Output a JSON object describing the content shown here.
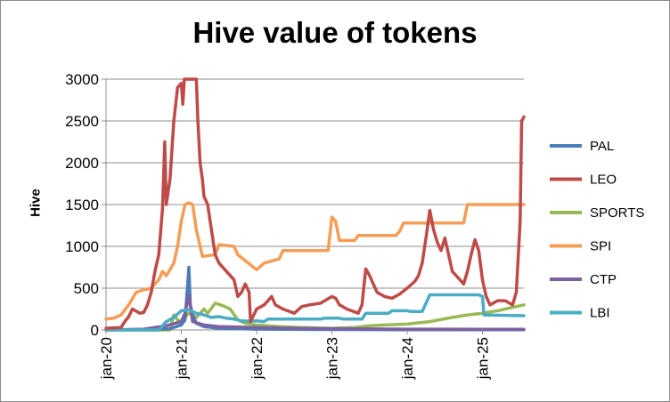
{
  "chart_data": {
    "type": "line",
    "title": "Hive value of tokens",
    "xlabel": "",
    "ylabel": "Hive",
    "x_tick_labels": [
      "jan-20",
      "jan-21",
      "jan-22",
      "jan-23",
      "jan-24",
      "jan-25"
    ],
    "x_tick_values": [
      2020.0,
      2021.0,
      2022.0,
      2023.0,
      2024.0,
      2025.0
    ],
    "xlim": [
      2020.0,
      2025.55
    ],
    "ylim": [
      0,
      3000
    ],
    "yticks": [
      0,
      500,
      1000,
      1500,
      2000,
      2500,
      3000
    ],
    "grid": true,
    "legend_position": "right",
    "series": [
      {
        "name": "PAL",
        "color": "#4a7ebb",
        "points": [
          [
            2020.0,
            0
          ],
          [
            2020.6,
            5
          ],
          [
            2020.85,
            15
          ],
          [
            2021.0,
            60
          ],
          [
            2021.05,
            120
          ],
          [
            2021.08,
            500
          ],
          [
            2021.1,
            750
          ],
          [
            2021.12,
            300
          ],
          [
            2021.15,
            180
          ],
          [
            2021.2,
            80
          ],
          [
            2021.3,
            40
          ],
          [
            2021.5,
            20
          ],
          [
            2022.0,
            10
          ],
          [
            2023.0,
            5
          ],
          [
            2024.0,
            3
          ],
          [
            2025.0,
            2
          ],
          [
            2025.55,
            2
          ]
        ]
      },
      {
        "name": "LEO",
        "color": "#be4b48",
        "points": [
          [
            2020.0,
            20
          ],
          [
            2020.2,
            30
          ],
          [
            2020.25,
            100
          ],
          [
            2020.3,
            160
          ],
          [
            2020.35,
            250
          ],
          [
            2020.45,
            200
          ],
          [
            2020.5,
            210
          ],
          [
            2020.55,
            300
          ],
          [
            2020.6,
            450
          ],
          [
            2020.65,
            700
          ],
          [
            2020.7,
            900
          ],
          [
            2020.75,
            1450
          ],
          [
            2020.78,
            2250
          ],
          [
            2020.8,
            1500
          ],
          [
            2020.85,
            1800
          ],
          [
            2020.9,
            2500
          ],
          [
            2020.95,
            2900
          ],
          [
            2021.0,
            2950
          ],
          [
            2021.02,
            2700
          ],
          [
            2021.04,
            3000
          ],
          [
            2021.2,
            3000
          ],
          [
            2021.22,
            2500
          ],
          [
            2021.25,
            2000
          ],
          [
            2021.28,
            1800
          ],
          [
            2021.3,
            1600
          ],
          [
            2021.35,
            1500
          ],
          [
            2021.4,
            1200
          ],
          [
            2021.45,
            900
          ],
          [
            2021.5,
            800
          ],
          [
            2021.6,
            700
          ],
          [
            2021.7,
            600
          ],
          [
            2021.75,
            400
          ],
          [
            2021.8,
            450
          ],
          [
            2021.85,
            550
          ],
          [
            2021.9,
            450
          ],
          [
            2021.92,
            100
          ],
          [
            2022.0,
            250
          ],
          [
            2022.1,
            300
          ],
          [
            2022.2,
            400
          ],
          [
            2022.25,
            300
          ],
          [
            2022.35,
            250
          ],
          [
            2022.5,
            200
          ],
          [
            2022.6,
            280
          ],
          [
            2022.7,
            300
          ],
          [
            2022.85,
            320
          ],
          [
            2023.0,
            400
          ],
          [
            2023.05,
            380
          ],
          [
            2023.1,
            300
          ],
          [
            2023.2,
            250
          ],
          [
            2023.35,
            200
          ],
          [
            2023.4,
            300
          ],
          [
            2023.45,
            730
          ],
          [
            2023.5,
            650
          ],
          [
            2023.55,
            550
          ],
          [
            2023.6,
            450
          ],
          [
            2023.7,
            400
          ],
          [
            2023.8,
            380
          ],
          [
            2023.9,
            430
          ],
          [
            2024.0,
            500
          ],
          [
            2024.1,
            580
          ],
          [
            2024.15,
            650
          ],
          [
            2024.2,
            800
          ],
          [
            2024.25,
            1100
          ],
          [
            2024.3,
            1430
          ],
          [
            2024.35,
            1200
          ],
          [
            2024.4,
            1050
          ],
          [
            2024.45,
            950
          ],
          [
            2024.5,
            1100
          ],
          [
            2024.55,
            900
          ],
          [
            2024.6,
            700
          ],
          [
            2024.7,
            600
          ],
          [
            2024.75,
            550
          ],
          [
            2024.8,
            700
          ],
          [
            2024.85,
            900
          ],
          [
            2024.9,
            1080
          ],
          [
            2024.95,
            950
          ],
          [
            2025.0,
            600
          ],
          [
            2025.05,
            400
          ],
          [
            2025.1,
            300
          ],
          [
            2025.2,
            350
          ],
          [
            2025.3,
            350
          ],
          [
            2025.4,
            300
          ],
          [
            2025.45,
            450
          ],
          [
            2025.5,
            1300
          ],
          [
            2025.52,
            2500
          ],
          [
            2025.55,
            2550
          ]
        ]
      },
      {
        "name": "SPORTS",
        "color": "#98b954",
        "points": [
          [
            2020.0,
            0
          ],
          [
            2020.85,
            0
          ],
          [
            2020.9,
            180
          ],
          [
            2020.95,
            120
          ],
          [
            2021.0,
            100
          ],
          [
            2021.1,
            200
          ],
          [
            2021.2,
            150
          ],
          [
            2021.3,
            250
          ],
          [
            2021.35,
            200
          ],
          [
            2021.45,
            320
          ],
          [
            2021.55,
            290
          ],
          [
            2021.65,
            250
          ],
          [
            2021.75,
            120
          ],
          [
            2021.85,
            80
          ],
          [
            2022.0,
            60
          ],
          [
            2022.3,
            40
          ],
          [
            2022.6,
            30
          ],
          [
            2023.0,
            20
          ],
          [
            2023.3,
            30
          ],
          [
            2023.5,
            50
          ],
          [
            2023.7,
            60
          ],
          [
            2024.0,
            70
          ],
          [
            2024.3,
            100
          ],
          [
            2024.6,
            150
          ],
          [
            2024.8,
            180
          ],
          [
            2025.0,
            200
          ],
          [
            2025.2,
            230
          ],
          [
            2025.4,
            270
          ],
          [
            2025.55,
            300
          ]
        ]
      },
      {
        "name": "SPI",
        "color": "#f59d56",
        "points": [
          [
            2020.0,
            130
          ],
          [
            2020.1,
            140
          ],
          [
            2020.2,
            180
          ],
          [
            2020.3,
            300
          ],
          [
            2020.4,
            450
          ],
          [
            2020.5,
            480
          ],
          [
            2020.6,
            500
          ],
          [
            2020.7,
            600
          ],
          [
            2020.75,
            700
          ],
          [
            2020.8,
            650
          ],
          [
            2020.85,
            720
          ],
          [
            2020.9,
            800
          ],
          [
            2020.95,
            1000
          ],
          [
            2021.0,
            1300
          ],
          [
            2021.05,
            1500
          ],
          [
            2021.1,
            1520
          ],
          [
            2021.15,
            1500
          ],
          [
            2021.2,
            1200
          ],
          [
            2021.25,
            1000
          ],
          [
            2021.28,
            880
          ],
          [
            2021.45,
            900
          ],
          [
            2021.5,
            1020
          ],
          [
            2021.7,
            1000
          ],
          [
            2021.75,
            900
          ],
          [
            2022.0,
            720
          ],
          [
            2022.1,
            800
          ],
          [
            2022.3,
            850
          ],
          [
            2022.35,
            950
          ],
          [
            2022.95,
            950
          ],
          [
            2023.0,
            1350
          ],
          [
            2023.05,
            1300
          ],
          [
            2023.1,
            1070
          ],
          [
            2023.3,
            1070
          ],
          [
            2023.35,
            1130
          ],
          [
            2023.85,
            1130
          ],
          [
            2023.9,
            1180
          ],
          [
            2023.95,
            1280
          ],
          [
            2024.75,
            1280
          ],
          [
            2024.8,
            1500
          ],
          [
            2025.55,
            1500
          ]
        ]
      },
      {
        "name": "CTP",
        "color": "#7d60a0",
        "points": [
          [
            2020.0,
            0
          ],
          [
            2020.5,
            10
          ],
          [
            2020.8,
            50
          ],
          [
            2021.0,
            100
          ],
          [
            2021.05,
            200
          ],
          [
            2021.1,
            420
          ],
          [
            2021.15,
            100
          ],
          [
            2021.3,
            60
          ],
          [
            2021.5,
            40
          ],
          [
            2022.0,
            30
          ],
          [
            2022.5,
            20
          ],
          [
            2023.0,
            15
          ],
          [
            2024.0,
            10
          ],
          [
            2025.0,
            8
          ],
          [
            2025.55,
            8
          ]
        ]
      },
      {
        "name": "LBI",
        "color": "#4aacc5",
        "points": [
          [
            2020.0,
            0
          ],
          [
            2020.7,
            0
          ],
          [
            2020.8,
            100
          ],
          [
            2020.9,
            150
          ],
          [
            2021.0,
            230
          ],
          [
            2021.1,
            240
          ],
          [
            2021.2,
            200
          ],
          [
            2021.3,
            180
          ],
          [
            2021.4,
            150
          ],
          [
            2021.5,
            160
          ],
          [
            2021.6,
            140
          ],
          [
            2021.7,
            130
          ],
          [
            2021.8,
            110
          ],
          [
            2021.9,
            105
          ],
          [
            2022.0,
            110
          ],
          [
            2022.1,
            100
          ],
          [
            2022.15,
            130
          ],
          [
            2022.85,
            130
          ],
          [
            2022.9,
            140
          ],
          [
            2023.1,
            140
          ],
          [
            2023.15,
            130
          ],
          [
            2023.4,
            130
          ],
          [
            2023.45,
            200
          ],
          [
            2023.75,
            200
          ],
          [
            2023.8,
            230
          ],
          [
            2024.0,
            230
          ],
          [
            2024.05,
            220
          ],
          [
            2024.2,
            220
          ],
          [
            2024.3,
            420
          ],
          [
            2024.95,
            420
          ],
          [
            2025.0,
            400
          ],
          [
            2025.02,
            180
          ],
          [
            2025.55,
            170
          ]
        ]
      }
    ]
  }
}
